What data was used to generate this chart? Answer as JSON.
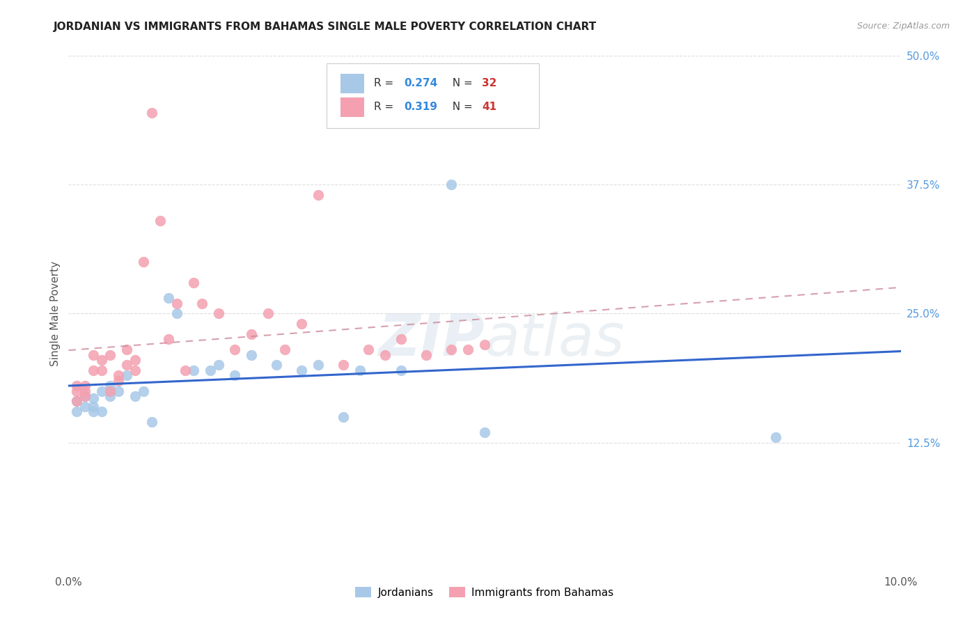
{
  "title": "JORDANIAN VS IMMIGRANTS FROM BAHAMAS SINGLE MALE POVERTY CORRELATION CHART",
  "source": "Source: ZipAtlas.com",
  "ylabel": "Single Male Poverty",
  "ytick_vals": [
    0.0,
    0.125,
    0.25,
    0.375,
    0.5
  ],
  "ytick_labels": [
    "",
    "12.5%",
    "25.0%",
    "37.5%",
    "50.0%"
  ],
  "legend_blue_r": "0.274",
  "legend_blue_n": "32",
  "legend_pink_r": "0.319",
  "legend_pink_n": "41",
  "legend_label_blue": "Jordanians",
  "legend_label_pink": "Immigrants from Bahamas",
  "blue_color": "#a8c8e8",
  "pink_color": "#f4a0b0",
  "blue_line_color": "#3366cc",
  "pink_line_color": "#cc8899",
  "blue_x": [
    0.001,
    0.001,
    0.002,
    0.002,
    0.003,
    0.003,
    0.003,
    0.004,
    0.004,
    0.005,
    0.005,
    0.006,
    0.007,
    0.008,
    0.009,
    0.01,
    0.012,
    0.013,
    0.015,
    0.017,
    0.018,
    0.02,
    0.022,
    0.025,
    0.028,
    0.03,
    0.033,
    0.035,
    0.04,
    0.046,
    0.05,
    0.085
  ],
  "blue_y": [
    0.155,
    0.165,
    0.16,
    0.17,
    0.155,
    0.16,
    0.168,
    0.155,
    0.175,
    0.17,
    0.18,
    0.175,
    0.19,
    0.17,
    0.175,
    0.145,
    0.265,
    0.25,
    0.195,
    0.195,
    0.2,
    0.19,
    0.21,
    0.2,
    0.195,
    0.2,
    0.15,
    0.195,
    0.195,
    0.375,
    0.135,
    0.13
  ],
  "pink_x": [
    0.001,
    0.001,
    0.001,
    0.002,
    0.002,
    0.002,
    0.003,
    0.003,
    0.004,
    0.004,
    0.005,
    0.005,
    0.006,
    0.006,
    0.007,
    0.007,
    0.008,
    0.008,
    0.009,
    0.01,
    0.011,
    0.012,
    0.013,
    0.014,
    0.015,
    0.016,
    0.018,
    0.02,
    0.022,
    0.024,
    0.026,
    0.028,
    0.03,
    0.033,
    0.036,
    0.038,
    0.04,
    0.043,
    0.046,
    0.048,
    0.05
  ],
  "pink_y": [
    0.165,
    0.175,
    0.18,
    0.17,
    0.175,
    0.18,
    0.21,
    0.195,
    0.195,
    0.205,
    0.175,
    0.21,
    0.19,
    0.185,
    0.215,
    0.2,
    0.195,
    0.205,
    0.3,
    0.445,
    0.34,
    0.225,
    0.26,
    0.195,
    0.28,
    0.26,
    0.25,
    0.215,
    0.23,
    0.25,
    0.215,
    0.24,
    0.365,
    0.2,
    0.215,
    0.21,
    0.225,
    0.21,
    0.215,
    0.215,
    0.22
  ]
}
